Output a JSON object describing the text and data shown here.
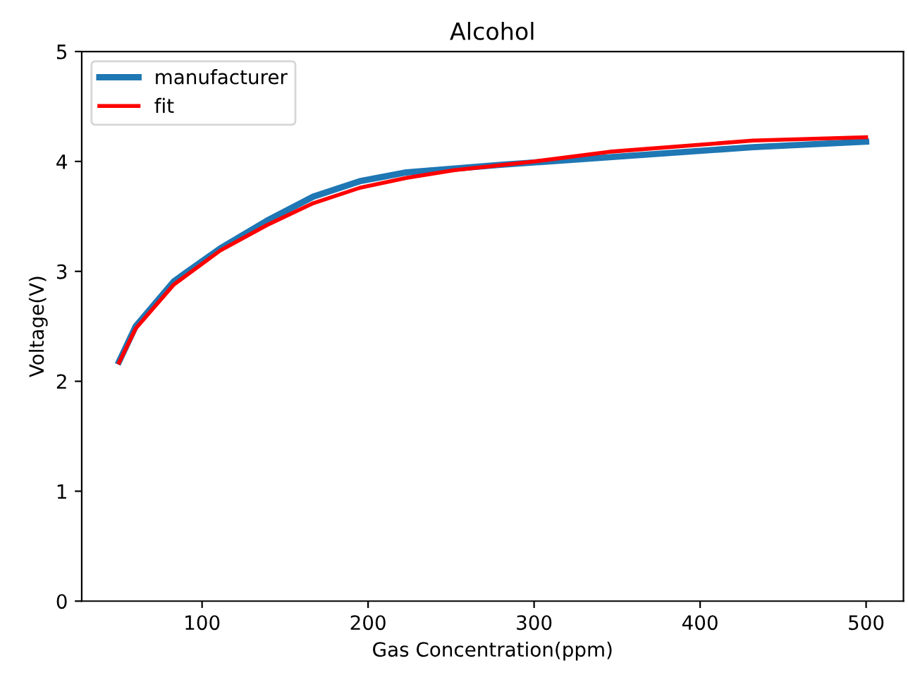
{
  "chart_data": {
    "type": "line",
    "title": "Alcohol",
    "xlabel": "Gas Concentration(ppm)",
    "ylabel": "Voltage(V)",
    "series": [
      {
        "name": "manufacturer",
        "color": "#1f77b4",
        "x": [
          50,
          60,
          83,
          111,
          139,
          167,
          195,
          223,
          280,
          347,
          432,
          500
        ],
        "values": [
          2.18,
          2.5,
          2.91,
          3.21,
          3.46,
          3.68,
          3.82,
          3.9,
          3.97,
          4.04,
          4.13,
          4.18
        ]
      },
      {
        "name": "fit",
        "color": "#ff0000",
        "x": [
          50,
          60,
          83,
          111,
          139,
          167,
          195,
          223,
          252,
          300,
          347,
          432,
          500
        ],
        "values": [
          2.17,
          2.48,
          2.88,
          3.19,
          3.42,
          3.62,
          3.76,
          3.85,
          3.92,
          4.0,
          4.09,
          4.19,
          4.22
        ]
      }
    ],
    "xlim": [
      27.5,
      522.5
    ],
    "xticks": [
      100,
      200,
      300,
      400,
      500
    ],
    "ylim": [
      0,
      5
    ],
    "yticks": [
      0,
      1,
      2,
      3,
      4,
      5
    ],
    "grid": false,
    "legend": "top left"
  }
}
